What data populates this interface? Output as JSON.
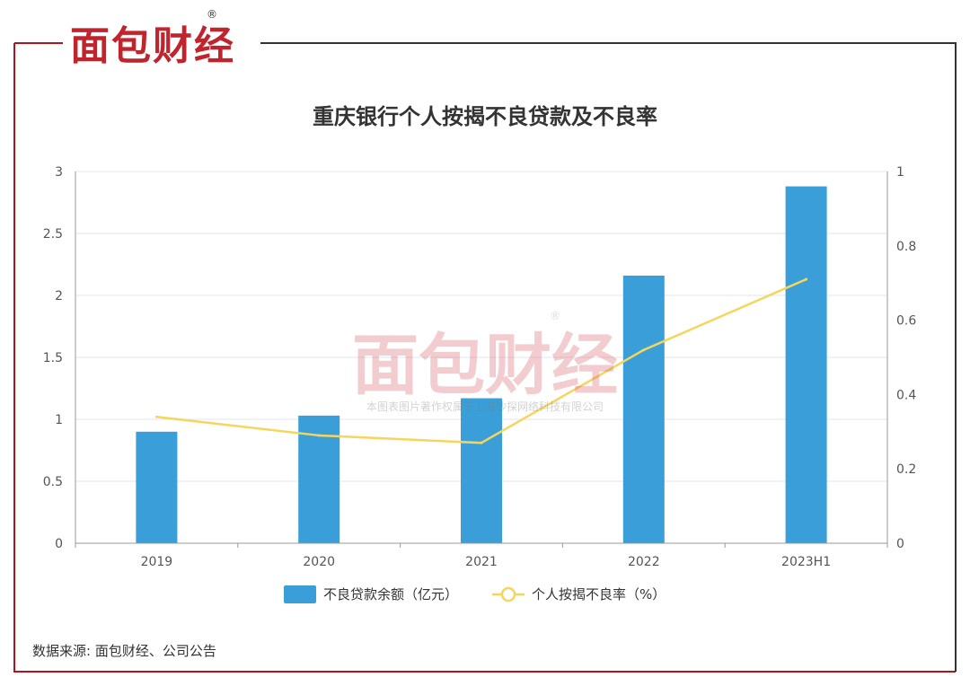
{
  "brand": {
    "logo_text": "面包财经",
    "registered_mark": "®",
    "watermark_logo": "面包财经",
    "watermark_caption": "本图表图片著作权属于上海沙探网络科技有限公司",
    "colors": {
      "frame_red": "#b3121f",
      "logo_red": "#c0242c",
      "logo_black": "#1a1a1a",
      "frame_dark": "#333333"
    }
  },
  "chart_data": {
    "type": "bar",
    "title": "重庆银行个人按揭不良贷款及不良率",
    "categories": [
      "2019",
      "2020",
      "2021",
      "2022",
      "2023H1"
    ],
    "series": [
      {
        "name": "不良贷款余额（亿元）",
        "type": "bar",
        "axis": "left",
        "color": "#3a9fd8",
        "values": [
          0.9,
          1.03,
          1.17,
          2.16,
          2.88
        ]
      },
      {
        "name": "个人按揭不良率（%）",
        "type": "line",
        "axis": "right",
        "color": "#f6d55c",
        "values": [
          0.34,
          0.29,
          0.27,
          0.52,
          0.71
        ]
      }
    ],
    "y_left": {
      "min": 0,
      "max": 3,
      "ticks": [
        "0",
        "0.5",
        "1",
        "1.5",
        "2",
        "2.5",
        "3"
      ]
    },
    "y_right": {
      "min": 0,
      "max": 1,
      "ticks": [
        "0",
        "0.2",
        "0.4",
        "0.6",
        "0.8",
        "1"
      ]
    },
    "legend": "bottom-center",
    "grid": true
  },
  "source": "数据来源: 面包财经、公司公告"
}
